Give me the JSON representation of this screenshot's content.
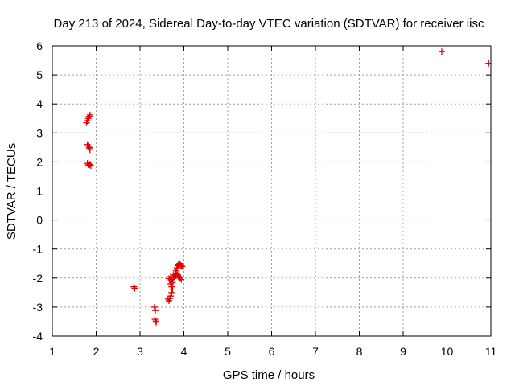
{
  "chart_data": {
    "type": "scatter",
    "title": "Day 213 of 2024, Sidereal Day-to-day VTEC variation (SDTVAR) for receiver iisc",
    "xlabel": "GPS time / hours",
    "ylabel": "SDTVAR / TECUs",
    "xlim": [
      1,
      11
    ],
    "ylim": [
      -4,
      6
    ],
    "xticks": [
      "1",
      "2",
      "3",
      "4",
      "5",
      "6",
      "7",
      "8",
      "9",
      "10",
      "11"
    ],
    "yticks": [
      "-4",
      "-3",
      "-2",
      "-1",
      "0",
      "1",
      "2",
      "3",
      "4",
      "5",
      "6"
    ],
    "grid": true,
    "marker": "+",
    "color": "#e00000",
    "series": [
      {
        "name": "SDTVAR",
        "points": [
          [
            1.78,
            3.35
          ],
          [
            1.8,
            3.42
          ],
          [
            1.82,
            3.5
          ],
          [
            1.84,
            3.57
          ],
          [
            1.86,
            3.62
          ],
          [
            1.8,
            2.6
          ],
          [
            1.82,
            2.55
          ],
          [
            1.84,
            2.48
          ],
          [
            1.86,
            2.42
          ],
          [
            1.85,
            2.5
          ],
          [
            1.8,
            1.95
          ],
          [
            1.82,
            1.9
          ],
          [
            1.84,
            1.88
          ],
          [
            1.86,
            1.92
          ],
          [
            1.88,
            1.87
          ],
          [
            2.86,
            -2.3
          ],
          [
            2.88,
            -2.35
          ],
          [
            3.33,
            -3.0
          ],
          [
            3.35,
            -3.12
          ],
          [
            3.34,
            -3.42
          ],
          [
            3.36,
            -3.48
          ],
          [
            3.37,
            -3.52
          ],
          [
            3.64,
            -2.72
          ],
          [
            3.66,
            -2.78
          ],
          [
            3.68,
            -2.7
          ],
          [
            3.7,
            -2.62
          ],
          [
            3.72,
            -2.5
          ],
          [
            3.66,
            -2.02
          ],
          [
            3.68,
            -2.1
          ],
          [
            3.7,
            -2.2
          ],
          [
            3.72,
            -2.3
          ],
          [
            3.74,
            -2.38
          ],
          [
            3.7,
            -1.95
          ],
          [
            3.72,
            -2.05
          ],
          [
            3.74,
            -2.15
          ],
          [
            3.76,
            -2.0
          ],
          [
            3.76,
            -1.9
          ],
          [
            3.78,
            -1.95
          ],
          [
            3.8,
            -1.88
          ],
          [
            3.82,
            -1.92
          ],
          [
            3.84,
            -1.85
          ],
          [
            3.86,
            -1.9
          ],
          [
            3.88,
            -1.95
          ],
          [
            3.9,
            -2.0
          ],
          [
            3.92,
            -1.98
          ],
          [
            3.94,
            -2.05
          ],
          [
            3.84,
            -1.65
          ],
          [
            3.86,
            -1.58
          ],
          [
            3.88,
            -1.52
          ],
          [
            3.9,
            -1.5
          ],
          [
            3.92,
            -1.55
          ],
          [
            3.94,
            -1.58
          ],
          [
            3.96,
            -1.6
          ],
          [
            3.82,
            -1.75
          ],
          [
            9.88,
            5.8
          ],
          [
            10.95,
            5.4
          ]
        ]
      }
    ]
  }
}
